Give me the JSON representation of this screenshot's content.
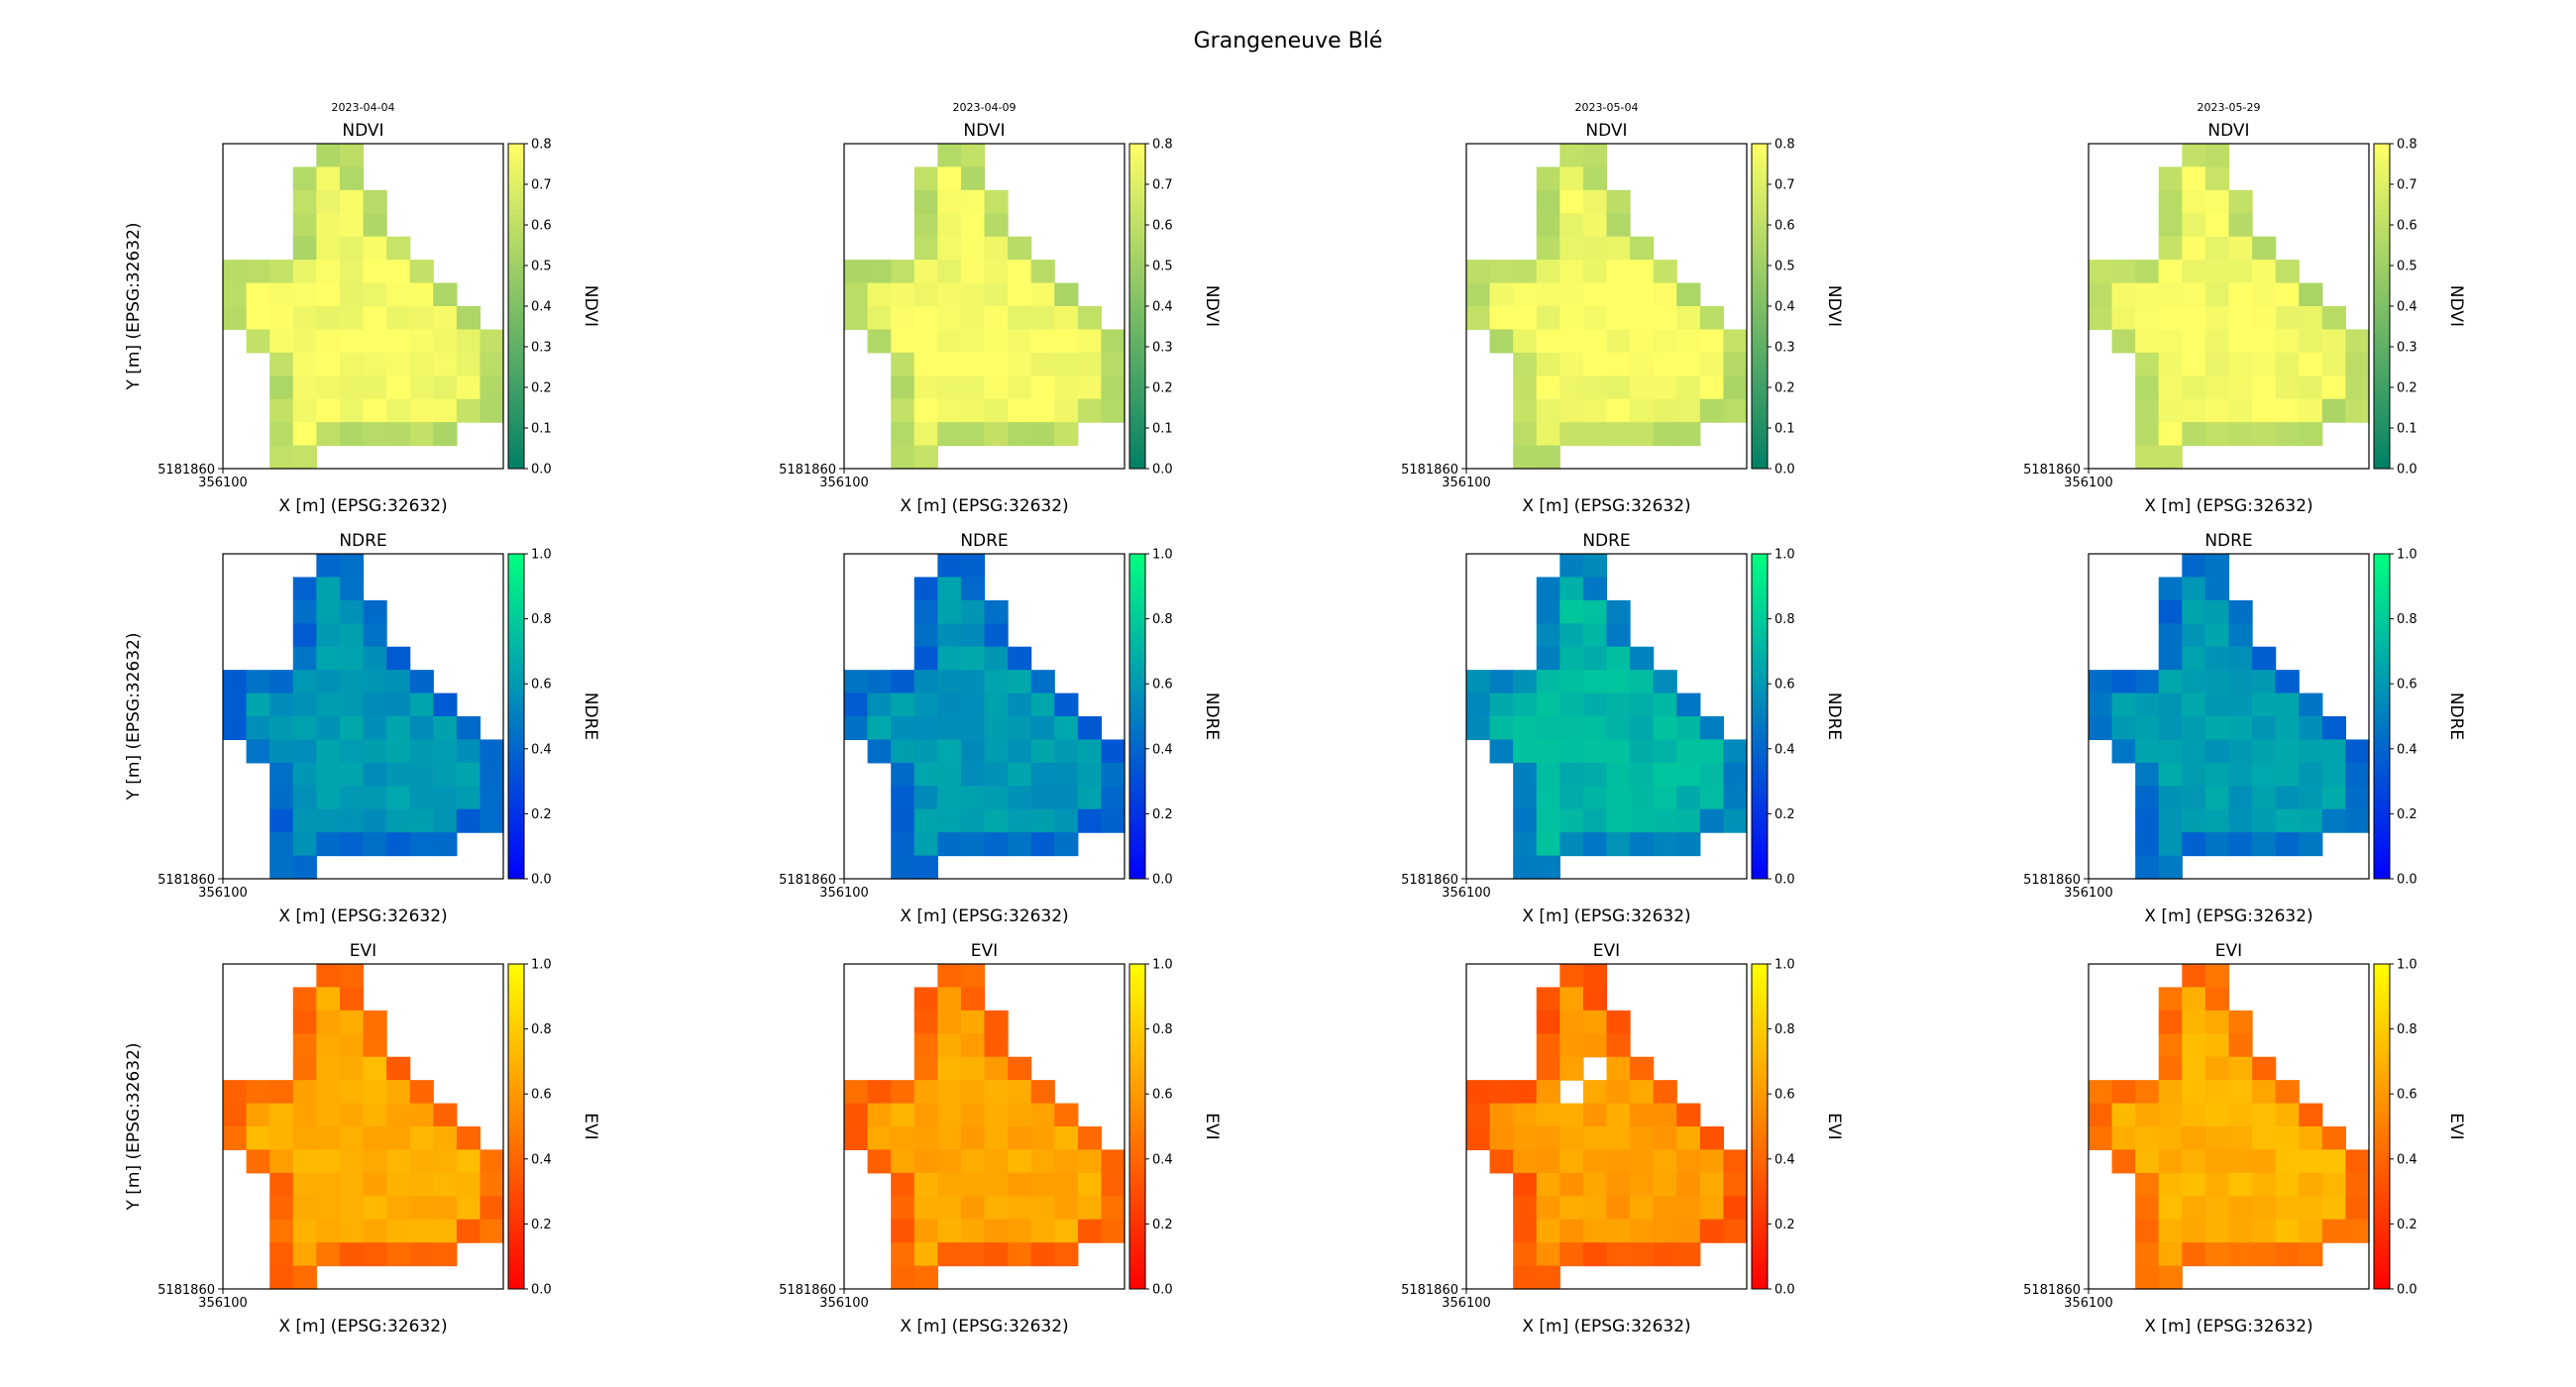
{
  "figure": {
    "title": "Grangeneuve Blé",
    "dates": [
      "2023-04-04",
      "2023-04-09",
      "2023-05-04",
      "2023-05-29"
    ],
    "xlabel": "X [m] (EPSG:32632)",
    "ylabel": "Y [m] (EPSG:32632)",
    "x_origin_tick": "356100",
    "y_origin_tick": "5181860"
  },
  "chart_data": {
    "type": "heatmap",
    "grid_shape": [
      14,
      12
    ],
    "field_mask": [
      "....11......",
      "...111......",
      "...1111.....",
      "...1111.....",
      "...11111....",
      "111111111...",
      "1111111111..",
      "11111111111.",
      ".11111111111",
      "..1111111111",
      "..1111111111",
      "..1111111111",
      "..11111111..",
      "..11........"
    ],
    "rows": [
      {
        "index": "NDVI",
        "colorbar_label": "NDVI",
        "colormap": "summer",
        "colormap_colors": [
          "#008066",
          "#ffff66"
        ],
        "vmin": 0.0,
        "vmax": 0.8,
        "colorbar_ticks": [
          0.0,
          0.1,
          0.2,
          0.3,
          0.4,
          0.5,
          0.6,
          0.7,
          0.8
        ],
        "interior_value": 0.79,
        "edge_value": 0.6,
        "mean_by_date": [
          0.77,
          0.77,
          0.77,
          0.77
        ]
      },
      {
        "index": "NDRE",
        "colorbar_label": "NDRE",
        "colormap": "winter",
        "colormap_colors": [
          "#0000ff",
          "#00ff80"
        ],
        "vmin": 0.0,
        "vmax": 1.0,
        "colorbar_ticks": [
          0.0,
          0.2,
          0.4,
          0.6,
          0.8,
          1.0
        ],
        "interior_value": 0.65,
        "edge_value": 0.45,
        "mean_by_date": [
          0.6,
          0.6,
          0.72,
          0.62
        ]
      },
      {
        "index": "EVI",
        "colorbar_label": "EVI",
        "colormap": "autumn",
        "colormap_colors": [
          "#ff0000",
          "#ffff00"
        ],
        "vmin": 0.0,
        "vmax": 1.0,
        "colorbar_ticks": [
          0.0,
          0.2,
          0.4,
          0.6,
          0.8,
          1.0
        ],
        "interior_value": 0.72,
        "edge_value": 0.45,
        "mean_by_date": [
          0.68,
          0.66,
          0.62,
          0.7
        ]
      }
    ]
  }
}
